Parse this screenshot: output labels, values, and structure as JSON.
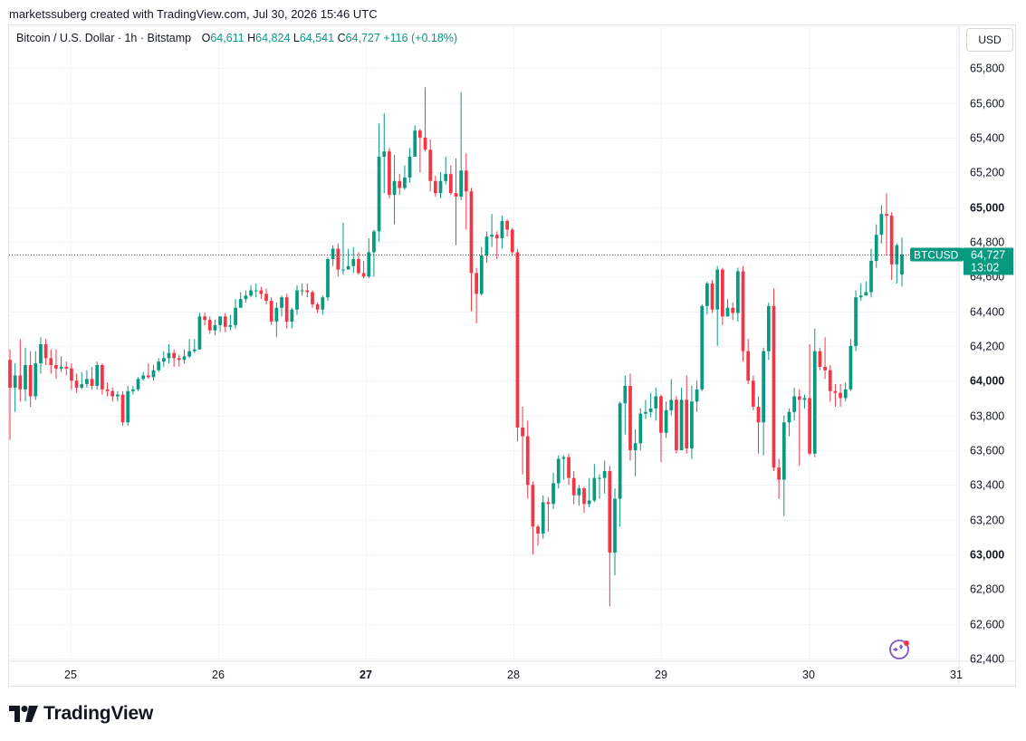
{
  "header": {
    "caption": "marketssuberg created with TradingView.com, Jul 30, 2026 15:46 UTC"
  },
  "legend": {
    "symbol": "Bitcoin / U.S. Dollar · 1h · Bitstamp",
    "open_label": "O",
    "open": "64,611",
    "high_label": "H",
    "high": "64,824",
    "low_label": "L",
    "low": "64,541",
    "close_label": "C",
    "close": "64,727",
    "change": "+116 (+0.18%)"
  },
  "currency_button": "USD",
  "price_tag": {
    "ticker": "BTCUSD",
    "price": "64,727",
    "countdown": "13:02"
  },
  "footer": {
    "brand": "TradingView"
  },
  "colors": {
    "up": "#089981",
    "down": "#f23645",
    "grid": "#f0f3fa",
    "text": "#131722",
    "tag": "#089981"
  },
  "icons": {
    "logo": "tradingview-logo-icon",
    "assistant": "sparkle-assistant-icon"
  },
  "chart_data": {
    "type": "candlestick",
    "ylim": [
      62400,
      65800
    ],
    "y_ticks": [
      62400,
      62600,
      62800,
      63000,
      63200,
      63400,
      63600,
      63800,
      64000,
      64200,
      64400,
      64600,
      64800,
      65000,
      65200,
      65400,
      65600,
      65800
    ],
    "y_tick_labels": [
      "62,400",
      "62,600",
      "62,800",
      "63,000",
      "63,200",
      "63,400",
      "63,600",
      "63,800",
      "64,000",
      "64,200",
      "64,400",
      "64,600",
      "64,800",
      "65,000",
      "65,200",
      "65,400",
      "65,600",
      "65,800"
    ],
    "y_bold_ticks": [
      63000,
      64000,
      65000
    ],
    "x_tick_labels": [
      "25",
      "26",
      "27",
      "28",
      "29",
      "30",
      "31"
    ],
    "x_bold_ticks": [
      "27"
    ],
    "last_price": 64727,
    "candles": [
      [
        64120,
        63960,
        64180,
        63660
      ],
      [
        63960,
        64030,
        64100,
        63820
      ],
      [
        64030,
        63950,
        64240,
        63880
      ],
      [
        63950,
        64090,
        64190,
        63880
      ],
      [
        64090,
        63910,
        64170,
        63850
      ],
      [
        63910,
        64100,
        64170,
        63890
      ],
      [
        64100,
        64210,
        64250,
        64040
      ],
      [
        64210,
        64130,
        64240,
        64090
      ],
      [
        64130,
        64090,
        64180,
        64040
      ],
      [
        64090,
        64070,
        64180,
        64010
      ],
      [
        64070,
        64080,
        64140,
        64050
      ],
      [
        64080,
        64070,
        64110,
        64030
      ],
      [
        64070,
        64000,
        64100,
        63950
      ],
      [
        64000,
        63960,
        64040,
        63930
      ],
      [
        63960,
        63980,
        64050,
        63950
      ],
      [
        63980,
        64010,
        64060,
        63960
      ],
      [
        64010,
        63970,
        64080,
        63950
      ],
      [
        63970,
        64090,
        64110,
        63950
      ],
      [
        64090,
        63950,
        64100,
        63920
      ],
      [
        63950,
        63940,
        63990,
        63910
      ],
      [
        63940,
        63910,
        63960,
        63880
      ],
      [
        63910,
        63920,
        63940,
        63880
      ],
      [
        63920,
        63760,
        63940,
        63740
      ],
      [
        63760,
        63940,
        63970,
        63740
      ],
      [
        63940,
        63950,
        63970,
        63920
      ],
      [
        63950,
        64010,
        64020,
        63940
      ],
      [
        64010,
        64030,
        64050,
        64000
      ],
      [
        64030,
        64020,
        64100,
        64010
      ],
      [
        64020,
        64060,
        64090,
        64000
      ],
      [
        64060,
        64110,
        64130,
        64050
      ],
      [
        64110,
        64130,
        64170,
        64080
      ],
      [
        64130,
        64160,
        64210,
        64100
      ],
      [
        64160,
        64130,
        64180,
        64080
      ],
      [
        64130,
        64120,
        64150,
        64080
      ],
      [
        64120,
        64140,
        64180,
        64100
      ],
      [
        64140,
        64170,
        64240,
        64130
      ],
      [
        64170,
        64180,
        64240,
        64160
      ],
      [
        64180,
        64370,
        64390,
        64180
      ],
      [
        64370,
        64350,
        64390,
        64320
      ],
      [
        64350,
        64290,
        64370,
        64270
      ],
      [
        64290,
        64320,
        64350,
        64260
      ],
      [
        64320,
        64370,
        64360,
        64280
      ],
      [
        64370,
        64310,
        64390,
        64280
      ],
      [
        64310,
        64320,
        64380,
        64290
      ],
      [
        64320,
        64420,
        64470,
        64300
      ],
      [
        64420,
        64470,
        64510,
        64420
      ],
      [
        64470,
        64490,
        64520,
        64450
      ],
      [
        64490,
        64520,
        64550,
        64480
      ],
      [
        64520,
        64520,
        64560,
        64480
      ],
      [
        64520,
        64500,
        64540,
        64470
      ],
      [
        64500,
        64460,
        64530,
        64440
      ],
      [
        64460,
        64340,
        64480,
        64320
      ],
      [
        64340,
        64420,
        64450,
        64250
      ],
      [
        64420,
        64480,
        64490,
        64370
      ],
      [
        64480,
        64340,
        64500,
        64300
      ],
      [
        64340,
        64410,
        64420,
        64300
      ],
      [
        64410,
        64520,
        64550,
        64380
      ],
      [
        64520,
        64520,
        64560,
        64490
      ],
      [
        64520,
        64510,
        64560,
        64480
      ],
      [
        64510,
        64440,
        64520,
        64420
      ],
      [
        64440,
        64410,
        64450,
        64390
      ],
      [
        64410,
        64480,
        64490,
        64380
      ],
      [
        64480,
        64700,
        64710,
        64460
      ],
      [
        64700,
        64760,
        64780,
        64660
      ],
      [
        64760,
        64640,
        64790,
        64600
      ],
      [
        64640,
        64640,
        64910,
        64610
      ],
      [
        64640,
        64660,
        64760,
        64640
      ],
      [
        64660,
        64700,
        64770,
        64620
      ],
      [
        64700,
        64620,
        64740,
        64610
      ],
      [
        64620,
        64600,
        64690,
        64590
      ],
      [
        64600,
        64740,
        64820,
        64590
      ],
      [
        64740,
        64860,
        64870,
        64600
      ],
      [
        64860,
        65290,
        65480,
        64800
      ],
      [
        65290,
        65320,
        65540,
        65080
      ],
      [
        65320,
        65070,
        65340,
        65050
      ],
      [
        65070,
        65150,
        65300,
        64900
      ],
      [
        65150,
        65110,
        65190,
        65070
      ],
      [
        65110,
        65170,
        65240,
        65100
      ],
      [
        65170,
        65290,
        65340,
        65140
      ],
      [
        65290,
        65440,
        65470,
        65290
      ],
      [
        65440,
        65400,
        65450,
        65200
      ],
      [
        65400,
        65330,
        65690,
        65320
      ],
      [
        65330,
        65150,
        65390,
        65090
      ],
      [
        65150,
        65080,
        65180,
        65060
      ],
      [
        65080,
        65150,
        65200,
        65050
      ],
      [
        65150,
        65190,
        65290,
        65130
      ],
      [
        65190,
        65080,
        65240,
        65070
      ],
      [
        65080,
        65060,
        65280,
        64780
      ],
      [
        65060,
        65210,
        65660,
        65040
      ],
      [
        65210,
        65090,
        65310,
        64870
      ],
      [
        65090,
        64620,
        65110,
        64400
      ],
      [
        64620,
        64500,
        64650,
        64330
      ],
      [
        64500,
        64720,
        64770,
        64490
      ],
      [
        64720,
        64830,
        64860,
        64680
      ],
      [
        64830,
        64840,
        64960,
        64770
      ],
      [
        64840,
        64820,
        64860,
        64700
      ],
      [
        64820,
        64920,
        64950,
        64760
      ],
      [
        64920,
        64870,
        64930,
        64830
      ],
      [
        64870,
        64740,
        64880,
        64720
      ],
      [
        64740,
        63730,
        64760,
        63650
      ],
      [
        63730,
        63680,
        63850,
        63460
      ],
      [
        63680,
        63400,
        63770,
        63320
      ],
      [
        63400,
        63160,
        63420,
        63000
      ],
      [
        63160,
        63120,
        63170,
        63050
      ],
      [
        63120,
        63300,
        63340,
        63090
      ],
      [
        63300,
        63290,
        63330,
        63130
      ],
      [
        63290,
        63410,
        63470,
        63260
      ],
      [
        63410,
        63550,
        63570,
        63380
      ],
      [
        63550,
        63560,
        63570,
        63430
      ],
      [
        63560,
        63440,
        63580,
        63400
      ],
      [
        63440,
        63340,
        63480,
        63290
      ],
      [
        63340,
        63380,
        63400,
        63280
      ],
      [
        63380,
        63290,
        63390,
        63240
      ],
      [
        63290,
        63310,
        63440,
        63270
      ],
      [
        63310,
        63440,
        63520,
        63300
      ],
      [
        63440,
        63440,
        63460,
        63320
      ],
      [
        63440,
        63480,
        63540,
        63350
      ],
      [
        63480,
        63010,
        63510,
        62700
      ],
      [
        63010,
        63320,
        63380,
        62880
      ],
      [
        63320,
        63870,
        63880,
        63160
      ],
      [
        63870,
        63970,
        64030,
        63690
      ],
      [
        63970,
        63600,
        64040,
        63540
      ],
      [
        63600,
        63640,
        63720,
        63450
      ],
      [
        63640,
        63810,
        63840,
        63600
      ],
      [
        63810,
        63820,
        63890,
        63780
      ],
      [
        63820,
        63840,
        63930,
        63790
      ],
      [
        63840,
        63910,
        63960,
        63770
      ],
      [
        63910,
        63700,
        63920,
        63530
      ],
      [
        63700,
        63830,
        63880,
        63670
      ],
      [
        63830,
        63890,
        64010,
        63800
      ],
      [
        63890,
        63600,
        63910,
        63580
      ],
      [
        63600,
        63890,
        63960,
        63610
      ],
      [
        63890,
        63610,
        64030,
        63580
      ],
      [
        63610,
        63880,
        63970,
        63550
      ],
      [
        63880,
        63950,
        64000,
        63820
      ],
      [
        63950,
        64430,
        64440,
        63940
      ],
      [
        64430,
        64560,
        64570,
        64380
      ],
      [
        64560,
        64410,
        64580,
        64390
      ],
      [
        64410,
        64640,
        64660,
        64200
      ],
      [
        64640,
        64370,
        64650,
        64320
      ],
      [
        64370,
        64420,
        64470,
        64370
      ],
      [
        64420,
        64390,
        64450,
        64350
      ],
      [
        64390,
        64630,
        64650,
        64340
      ],
      [
        64630,
        64170,
        64660,
        64110
      ],
      [
        64170,
        64000,
        64240,
        63980
      ],
      [
        64000,
        63850,
        64030,
        63830
      ],
      [
        63850,
        63760,
        63910,
        63580
      ],
      [
        63760,
        64170,
        64190,
        63570
      ],
      [
        64170,
        64430,
        64450,
        64120
      ],
      [
        64430,
        63500,
        64530,
        63480
      ],
      [
        63500,
        63430,
        63550,
        63320
      ],
      [
        63430,
        63760,
        63800,
        63220
      ],
      [
        63760,
        63820,
        63840,
        63680
      ],
      [
        63820,
        63910,
        63960,
        63770
      ],
      [
        63910,
        63890,
        63950,
        63510
      ],
      [
        63890,
        63900,
        63920,
        63840
      ],
      [
        63900,
        63580,
        64210,
        63570
      ],
      [
        63580,
        64170,
        64300,
        63560
      ],
      [
        64170,
        64080,
        64190,
        64060
      ],
      [
        64080,
        64060,
        64250,
        64010
      ],
      [
        64060,
        63940,
        64090,
        63880
      ],
      [
        63940,
        63930,
        63980,
        63850
      ],
      [
        63930,
        63900,
        63980,
        63850
      ],
      [
        63900,
        63950,
        63990,
        63880
      ],
      [
        63950,
        64200,
        64240,
        63940
      ],
      [
        64200,
        64480,
        64520,
        64170
      ],
      [
        64480,
        64490,
        64560,
        64460
      ],
      [
        64490,
        64510,
        64570,
        64500
      ],
      [
        64510,
        64690,
        64760,
        64480
      ],
      [
        64690,
        64840,
        64900,
        64650
      ],
      [
        64840,
        64960,
        65010,
        64790
      ],
      [
        64960,
        64950,
        65080,
        64720
      ],
      [
        64950,
        64670,
        64970,
        64580
      ],
      [
        64670,
        64780,
        64790,
        64560
      ],
      [
        64611,
        64727,
        64824,
        64541
      ]
    ]
  }
}
